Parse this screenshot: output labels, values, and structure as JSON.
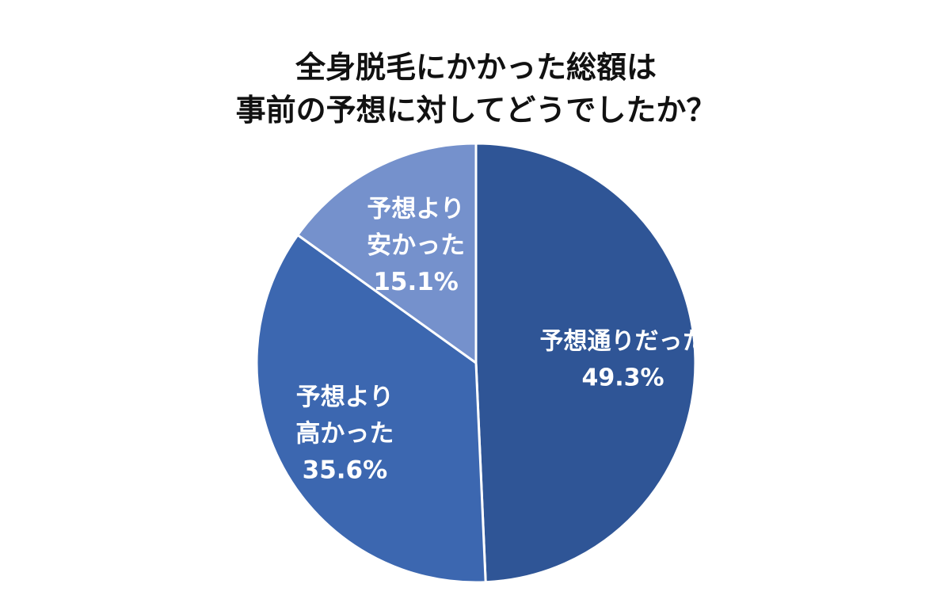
{
  "chart_data": {
    "type": "pie",
    "title": [
      "全身脱毛にかかった総額は",
      "事前の予想に対してどうでしたか？"
    ],
    "slices": [
      {
        "label": [
          "予想通りだった"
        ],
        "value": 49.3,
        "value_label": "49.3%",
        "color": "#2f5596"
      },
      {
        "label": [
          "予想より",
          "高かった"
        ],
        "value": 35.6,
        "value_label": "35.6%",
        "color": "#3c67b0"
      },
      {
        "label": [
          "予想より",
          "安かった"
        ],
        "value": 15.1,
        "value_label": "15.1%",
        "color": "#7591cc"
      }
    ],
    "start_angle": "12 o'clock",
    "direction": "clockwise",
    "legend": "none"
  }
}
